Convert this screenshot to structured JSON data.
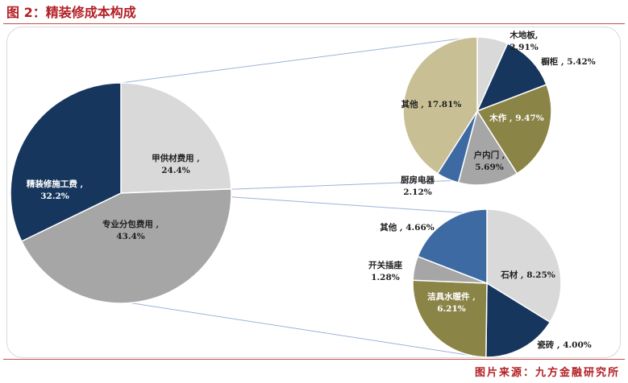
{
  "header": {
    "title": "图 2：精装修成本构成"
  },
  "footer": {
    "source": "图片来源：九方金融研究所"
  },
  "chart_data": [
    {
      "type": "pie",
      "id": "main",
      "slices": [
        {
          "name": "甲供材费用",
          "value": 24.4,
          "label": "24.4%",
          "color": "#d9d9d9",
          "text_color": "#1f1f1f"
        },
        {
          "name": "专业分包费用",
          "value": 43.4,
          "label": "43.4%",
          "color": "#a6a6a6",
          "text_color": "#1f1f1f"
        },
        {
          "name": "精装修施工费",
          "value": 32.2,
          "label": "32.2%",
          "color": "#17365d",
          "text_color": "#ffffff"
        }
      ]
    },
    {
      "type": "pie",
      "id": "jiagong",
      "slices": [
        {
          "name": "木地板",
          "value": 2.91,
          "label": "2.91%",
          "color": "#d9d9d9",
          "text_color": "#1f1f1f"
        },
        {
          "name": "橱柜",
          "value": 5.42,
          "label": "5.42%",
          "color": "#17365d",
          "text_color": "#1f1f1f"
        },
        {
          "name": "木作",
          "value": 9.47,
          "label": "9.47%",
          "color": "#8b8447",
          "text_color": "#ffffff"
        },
        {
          "name": "户内门",
          "value": 5.69,
          "label": "5.69%",
          "color": "#a6a6a6",
          "text_color": "#1f1f1f"
        },
        {
          "name": "厨房电器",
          "value": 2.12,
          "label": "2.12%",
          "color": "#3e6aa3",
          "text_color": "#1f1f1f"
        },
        {
          "name": "其他",
          "value": 17.81,
          "label": "17.81%",
          "color": "#c9bf95",
          "text_color": "#1f1f1f"
        }
      ]
    },
    {
      "type": "pie",
      "id": "fenbao",
      "slices": [
        {
          "name": "石材",
          "value": 8.25,
          "label": "8.25%",
          "color": "#d9d9d9",
          "text_color": "#1f1f1f"
        },
        {
          "name": "瓷砖",
          "value": 4.0,
          "label": "4.00%",
          "color": "#17365d",
          "text_color": "#1f1f1f"
        },
        {
          "name": "洁具水暖件",
          "value": 6.21,
          "label": "6.21%",
          "color": "#8b8447",
          "text_color": "#ffffff"
        },
        {
          "name": "开关插座",
          "value": 1.28,
          "label": "1.28%",
          "color": "#a6a6a6",
          "text_color": "#1f1f1f"
        },
        {
          "name": "其他",
          "value": 4.66,
          "label": "4.66%",
          "color": "#3e6aa3",
          "text_color": "#1f1f1f"
        }
      ]
    }
  ]
}
